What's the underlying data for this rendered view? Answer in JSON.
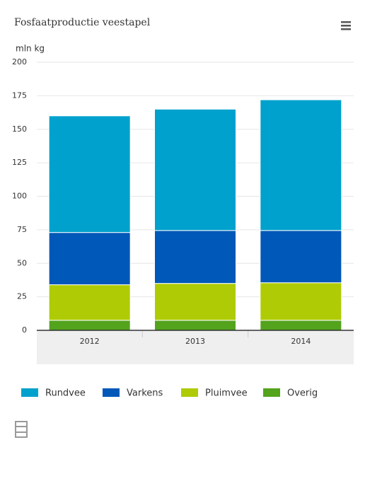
{
  "chart_data": {
    "type": "stacked_bar",
    "title": "Fosfaatproductie veestapel",
    "y_label": "mln kg",
    "categories": [
      "2012",
      "2013",
      "2014"
    ],
    "series": [
      {
        "name": "Rundvee",
        "color": "#00a1cd",
        "values": [
          87,
          90.5,
          97.5
        ]
      },
      {
        "name": "Varkens",
        "color": "#0058b8",
        "values": [
          39,
          39.5,
          39
        ]
      },
      {
        "name": "Pluimvee",
        "color": "#afcb05",
        "values": [
          26.5,
          27.5,
          28
        ]
      },
      {
        "name": "Overig",
        "color": "#53a31d",
        "values": [
          7.5,
          7.5,
          7.5
        ]
      }
    ],
    "ylim": [
      0,
      200
    ],
    "yticks": [
      0,
      25,
      50,
      75,
      100,
      125,
      150,
      175,
      200
    ],
    "grid": true
  }
}
